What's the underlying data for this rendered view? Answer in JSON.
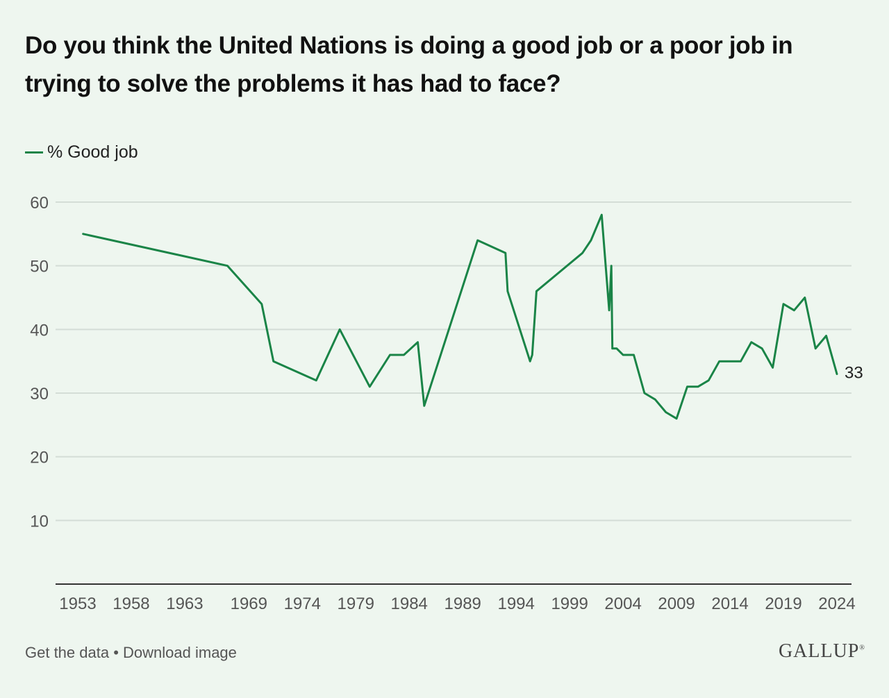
{
  "title": "Do you think the United Nations is doing a good job or a poor job in trying to solve the problems it has had to face?",
  "footer": {
    "get_data": "Get the data",
    "separator": " • ",
    "download": "Download image"
  },
  "logo": "GALLUP",
  "logo_mark": "®",
  "colors": {
    "line": "#1a8447",
    "grid": "#d4ddd6",
    "axis": "#333333",
    "background": "#eef6ef"
  },
  "chart_data": {
    "type": "line",
    "title": "Do you think the United Nations is doing a good job or a poor job in trying to solve the problems it has had to face?",
    "xlabel": "",
    "ylabel": "",
    "xlim": [
      1953,
      2024
    ],
    "ylim": [
      0,
      60
    ],
    "x_ticks": [
      "1953",
      "1958",
      "1963",
      "1969",
      "1974",
      "1979",
      "1984",
      "1989",
      "1994",
      "1999",
      "2004",
      "2009",
      "2014",
      "2019",
      "2024"
    ],
    "y_ticks": [
      10,
      20,
      30,
      40,
      50,
      60
    ],
    "grid": true,
    "legend_position": "top-left",
    "end_label": "33",
    "series": [
      {
        "name": "% Good job",
        "color": "#1a8447",
        "points": [
          [
            1953.5,
            55
          ],
          [
            1967.0,
            50
          ],
          [
            1970.2,
            44
          ],
          [
            1971.3,
            35
          ],
          [
            1975.3,
            32
          ],
          [
            1977.5,
            40
          ],
          [
            1980.3,
            31
          ],
          [
            1982.2,
            36
          ],
          [
            1983.5,
            36
          ],
          [
            1984.8,
            38
          ],
          [
            1985.4,
            28
          ],
          [
            1990.4,
            54
          ],
          [
            1993.0,
            52
          ],
          [
            1993.2,
            46
          ],
          [
            1995.3,
            35
          ],
          [
            1995.5,
            36
          ],
          [
            1995.9,
            46
          ],
          [
            2000.2,
            52
          ],
          [
            2001.0,
            54
          ],
          [
            2002.0,
            58
          ],
          [
            2002.7,
            43
          ],
          [
            2002.9,
            50
          ],
          [
            2003.0,
            37
          ],
          [
            2003.4,
            37
          ],
          [
            2004.0,
            36
          ],
          [
            2005.0,
            36
          ],
          [
            2006.0,
            30
          ],
          [
            2007.0,
            29
          ],
          [
            2008.0,
            27
          ],
          [
            2009.0,
            26
          ],
          [
            2010.0,
            31
          ],
          [
            2011.0,
            31
          ],
          [
            2012.0,
            32
          ],
          [
            2013.0,
            35
          ],
          [
            2014.0,
            35
          ],
          [
            2015.0,
            35
          ],
          [
            2016.0,
            38
          ],
          [
            2017.0,
            37
          ],
          [
            2018.0,
            34
          ],
          [
            2019.0,
            44
          ],
          [
            2020.0,
            43
          ],
          [
            2021.0,
            45
          ],
          [
            2022.0,
            37
          ],
          [
            2023.0,
            39
          ],
          [
            2024.0,
            33
          ]
        ]
      }
    ]
  }
}
